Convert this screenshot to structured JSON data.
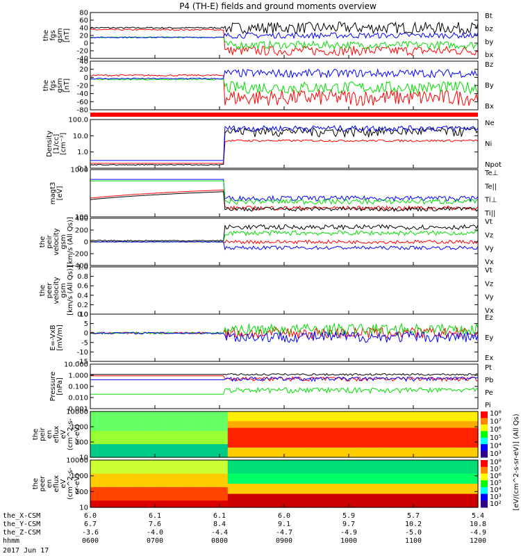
{
  "title": "P4 (TH-E) fields and ground moments overview",
  "date": "2017 Jun 17",
  "ephemeris": {
    "rows": [
      {
        "label": "the_X-CSM",
        "values": [
          "6.0",
          "6.1",
          "6.1",
          "6.0",
          "5.9",
          "5.7",
          "5.4"
        ]
      },
      {
        "label": "the_Y-CSM",
        "values": [
          "6.7",
          "7.6",
          "8.4",
          "9.1",
          "9.7",
          "10.2",
          "10.8"
        ]
      },
      {
        "label": "the_Z-CSM",
        "values": [
          "-3.6",
          "-4.0",
          "-4.4",
          "-4.7",
          "-4.9",
          "-5.0",
          "-4.9"
        ]
      },
      {
        "label": "hhmm",
        "values": [
          "0600",
          "0700",
          "0800",
          "0900",
          "1000",
          "1100",
          "1200"
        ]
      }
    ]
  },
  "colors": {
    "black": "#000000",
    "red": "#ff0000",
    "green": "#00dd00",
    "blue": "#0000ff"
  },
  "chart_data": [
    {
      "id": "p1",
      "type": "line",
      "ylabel": [
        "the",
        "fgs",
        "gsm",
        "[nT]"
      ],
      "yticks": [
        "80",
        "60",
        "40",
        "20",
        "0",
        "-20",
        "-40"
      ],
      "ylim": [
        -40,
        80
      ],
      "series": [
        {
          "name": "Bt",
          "color": "black"
        },
        {
          "name": "bz",
          "color": "red"
        },
        {
          "name": "by",
          "color": "green"
        },
        {
          "name": "bx",
          "color": "blue"
        }
      ]
    },
    {
      "id": "p2",
      "type": "line",
      "ylabel": [
        "the",
        "fgs",
        "gsm",
        "[nT]"
      ],
      "yticks": [
        "40",
        "20",
        "0",
        "-20",
        "-40",
        "-60",
        "-80"
      ],
      "ylim": [
        -80,
        40
      ],
      "series": [
        {
          "name": "Bz",
          "color": "red"
        },
        {
          "name": "By",
          "color": "green"
        },
        {
          "name": "Bx",
          "color": "blue"
        }
      ]
    },
    {
      "id": "p3",
      "type": "line",
      "ylabel": [
        "Density",
        "[1/cc]",
        "[cm⁻³]"
      ],
      "yticks": [
        "100.0",
        "10.0",
        "1.0",
        "0.1"
      ],
      "log": true,
      "ylim": [
        0.1,
        100
      ],
      "series": [
        {
          "name": "Ne",
          "color": "red"
        },
        {
          "name": "Ni",
          "color": "black"
        },
        {
          "name": "Npot",
          "color": "blue"
        }
      ]
    },
    {
      "id": "p4",
      "type": "line",
      "ylabel": [
        "magt3",
        "[eV]"
      ],
      "yticks": [
        "1000",
        "100"
      ],
      "log": true,
      "ylim": [
        30,
        10000
      ],
      "series": [
        {
          "name": "Te⊥",
          "color": "red"
        },
        {
          "name": "Te||",
          "color": "black"
        },
        {
          "name": "Ti⊥",
          "color": "blue"
        },
        {
          "name": "Ti||",
          "color": "green"
        }
      ]
    },
    {
      "id": "p5",
      "type": "line",
      "ylabel": [
        "the",
        "peir",
        "velocity",
        "gsm",
        "[km/s (All Qs)]"
      ],
      "yticks": [
        "400",
        "200",
        "0",
        "-200",
        "-400"
      ],
      "ylim": [
        -400,
        400
      ],
      "series": [
        {
          "name": "Vt",
          "color": "black"
        },
        {
          "name": "Vz",
          "color": "red"
        },
        {
          "name": "Vy",
          "color": "green"
        },
        {
          "name": "Vx",
          "color": "blue"
        }
      ]
    },
    {
      "id": "p6",
      "type": "line",
      "ylabel": [
        "the",
        "peer",
        "velocity",
        "gsm",
        "[km/s (All Qs)]"
      ],
      "yticks": [
        "1.0",
        "0.8",
        "0.6",
        "0.4",
        "0.2",
        "0.0"
      ],
      "ylim": [
        0,
        1
      ],
      "series": [
        {
          "name": "Vt",
          "color": "black"
        },
        {
          "name": "Vz",
          "color": "red"
        },
        {
          "name": "Vy",
          "color": "green"
        },
        {
          "name": "Vx",
          "color": "blue"
        }
      ]
    },
    {
      "id": "p7",
      "type": "line",
      "ylabel": [
        "E=-VxB",
        "[mV/m]"
      ],
      "yticks": [
        "10",
        "5",
        "0",
        "-5",
        "-10",
        "-15"
      ],
      "ylim": [
        -15,
        10
      ],
      "series": [
        {
          "name": "Ez",
          "color": "red"
        },
        {
          "name": "Ey",
          "color": "green"
        },
        {
          "name": "Ex",
          "color": "blue"
        }
      ]
    },
    {
      "id": "p8",
      "type": "line",
      "ylabel": [
        "Pressure",
        "[nPa]"
      ],
      "yticks": [
        "10.000",
        "1.000",
        "0.100",
        "0.010",
        "0.001"
      ],
      "log": true,
      "ylim": [
        0.001,
        10
      ],
      "series": [
        {
          "name": "Pt",
          "color": "black"
        },
        {
          "name": "Pb",
          "color": "red"
        },
        {
          "name": "Pe",
          "color": "green"
        },
        {
          "name": "Pi",
          "color": "blue"
        }
      ]
    },
    {
      "id": "p9",
      "type": "heatmap",
      "ylabel": [
        "the",
        "peir",
        "en",
        "eflux",
        "eV",
        "(cm^2-s-",
        "sr-eV)"
      ],
      "yticks": [
        "10000",
        "1000",
        "100",
        "10"
      ],
      "log": true,
      "ylim": [
        5,
        30000
      ]
    },
    {
      "id": "p10",
      "type": "heatmap",
      "ylabel": [
        "the",
        "peer",
        "en",
        "eflux",
        "eV",
        "(cm^2-s-",
        "sr-eV)"
      ],
      "yticks": [
        "10000",
        "1000",
        "100",
        "10"
      ],
      "log": true,
      "ylim": [
        5,
        30000
      ]
    }
  ],
  "colorbars": [
    {
      "labels": [
        "10⁸",
        "10⁷",
        "10⁶",
        "10⁵",
        "10⁴",
        "10³"
      ],
      "title": "[eV/(cm^2-s-sr-eV)] (All Qs)"
    },
    {
      "labels": [
        "10⁸",
        "10⁷",
        "10⁶",
        "10⁵",
        "10⁴",
        "10³",
        "10²"
      ],
      "title": ""
    }
  ]
}
